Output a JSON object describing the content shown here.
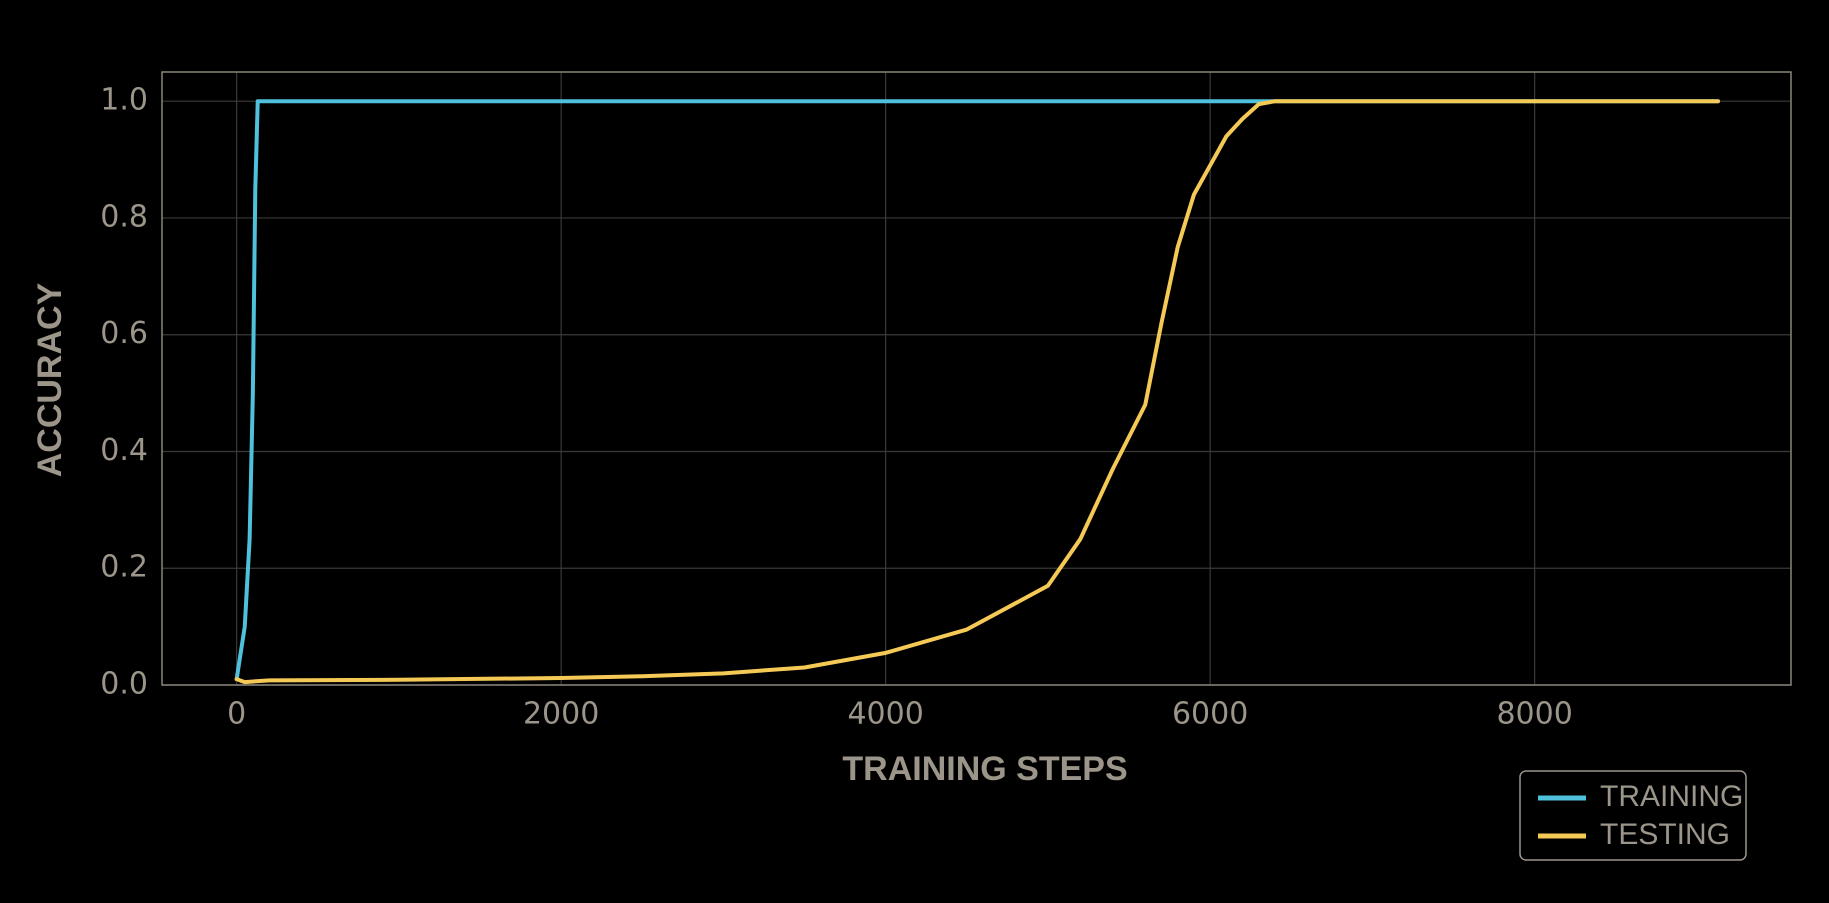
{
  "chart_data": {
    "type": "line",
    "xlabel": "TRAINING STEPS",
    "ylabel": "ACCURACY",
    "xlim": [
      -460,
      9580
    ],
    "ylim": [
      0,
      1.05
    ],
    "xticks": [
      0,
      2000,
      4000,
      6000,
      8000
    ],
    "yticks": [
      {
        "value": 0,
        "label": "0.0"
      },
      0.2,
      0.4,
      0.6,
      0.8,
      {
        "value": 1,
        "label": "1.0"
      }
    ],
    "grid": true,
    "legend": "bottom-right",
    "series": [
      {
        "name": "TRAINING",
        "color": "#4fc1dd",
        "x": [
          0,
          50,
          80,
          100,
          115,
          130,
          9130
        ],
        "values": [
          0.01,
          0.1,
          0.25,
          0.5,
          0.85,
          1.0,
          1.0
        ]
      },
      {
        "name": "TESTING",
        "color": "#f5c955",
        "x": [
          0,
          50,
          200,
          1000,
          2000,
          2500,
          3000,
          3500,
          4000,
          4500,
          5000,
          5200,
          5400,
          5600,
          5700,
          5800,
          5900,
          6000,
          6100,
          6200,
          6300,
          6400,
          9130
        ],
        "values": [
          0.01,
          0.005,
          0.008,
          0.009,
          0.012,
          0.015,
          0.02,
          0.03,
          0.055,
          0.095,
          0.17,
          0.25,
          0.37,
          0.48,
          0.62,
          0.75,
          0.84,
          0.89,
          0.94,
          0.97,
          0.995,
          1.0,
          1.0
        ]
      }
    ]
  }
}
